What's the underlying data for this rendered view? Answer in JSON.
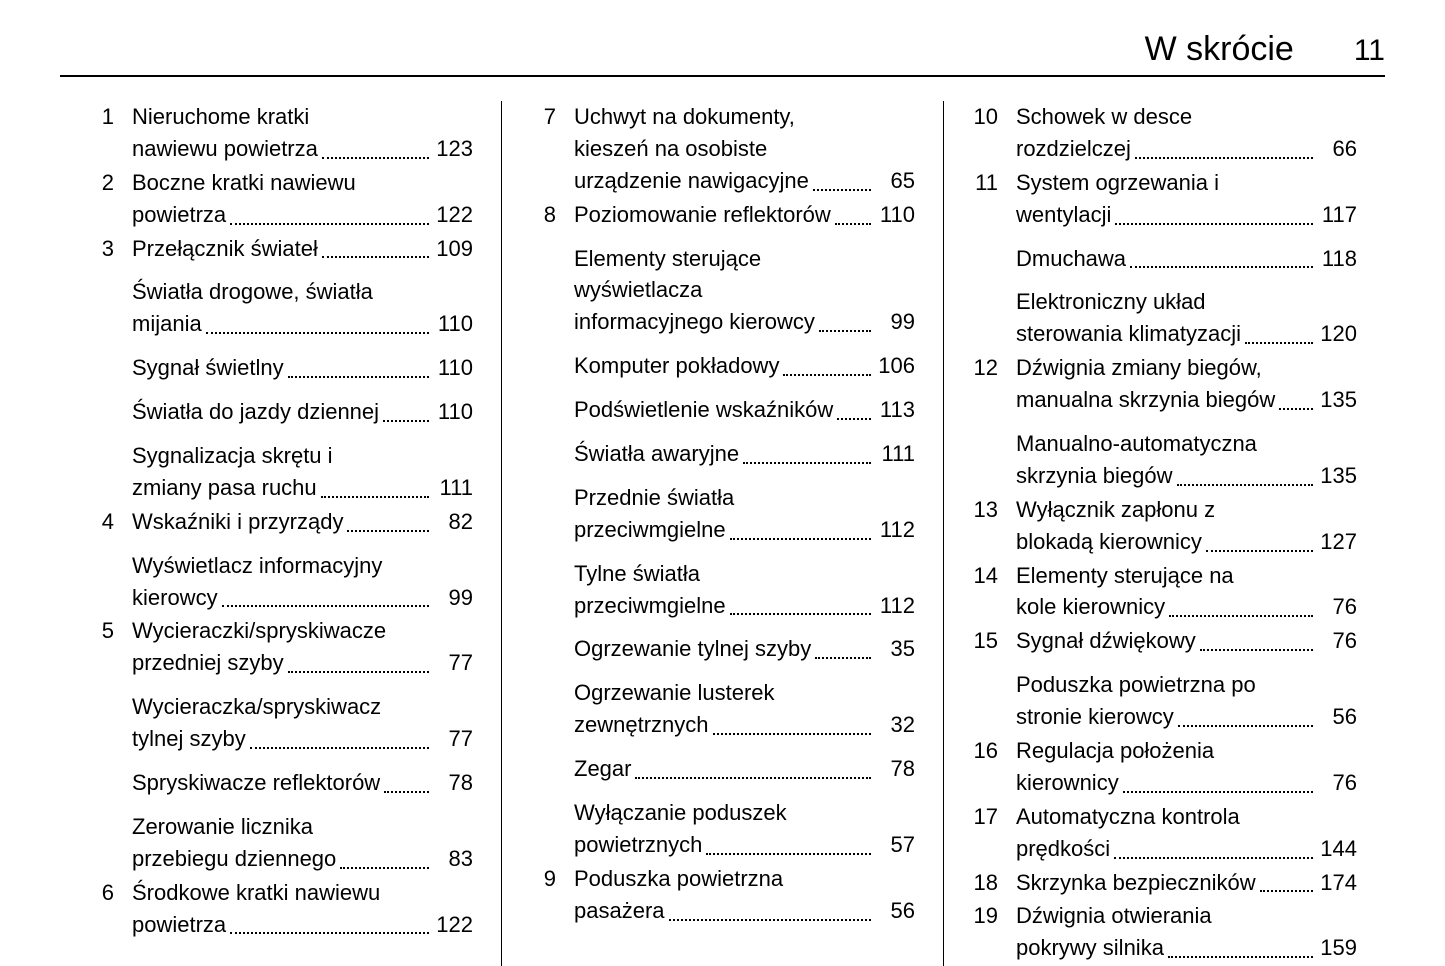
{
  "header": {
    "title": "W skrócie",
    "page": "11"
  },
  "columns": [
    {
      "entries": [
        {
          "num": "1",
          "lines": [
            "Nieruchome kratki"
          ],
          "last": "nawiewu powietrza",
          "page": "123"
        },
        {
          "num": "2",
          "lines": [
            "Boczne kratki nawiewu"
          ],
          "last": "powietrza",
          "page": "122"
        },
        {
          "num": "3",
          "lines": [],
          "last": "Przełącznik świateł",
          "page": "109"
        },
        {
          "num": "",
          "spacer": true,
          "lines": [
            "Światła drogowe, światła"
          ],
          "last": "mijania",
          "page": "110"
        },
        {
          "num": "",
          "spacer": true,
          "lines": [],
          "last": "Sygnał świetlny",
          "page": "110"
        },
        {
          "num": "",
          "spacer": true,
          "lines": [],
          "last": "Światła do jazdy dziennej",
          "page": "110"
        },
        {
          "num": "",
          "spacer": true,
          "lines": [
            "Sygnalizacja skrętu i"
          ],
          "last": "zmiany pasa ruchu",
          "page": "111"
        },
        {
          "num": "4",
          "lines": [],
          "last": "Wskaźniki i przyrządy",
          "page": "82"
        },
        {
          "num": "",
          "spacer": true,
          "lines": [
            "Wyświetlacz informacyjny"
          ],
          "last": "kierowcy",
          "page": "99"
        },
        {
          "num": "5",
          "lines": [
            "Wycieraczki/spryskiwacze"
          ],
          "last": "przedniej szyby",
          "page": "77"
        },
        {
          "num": "",
          "spacer": true,
          "lines": [
            "Wycieraczka/spryskiwacz"
          ],
          "last": "tylnej szyby",
          "page": "77"
        },
        {
          "num": "",
          "spacer": true,
          "lines": [],
          "last": "Spryskiwacze reflektorów",
          "page": "78"
        },
        {
          "num": "",
          "spacer": true,
          "lines": [
            "Zerowanie licznika"
          ],
          "last": "przebiegu dziennego",
          "page": "83"
        },
        {
          "num": "6",
          "lines": [
            "Środkowe kratki nawiewu"
          ],
          "last": "powietrza",
          "page": "122"
        }
      ]
    },
    {
      "entries": [
        {
          "num": "7",
          "lines": [
            "Uchwyt na dokumenty,",
            "kieszeń na osobiste"
          ],
          "last": "urządzenie nawigacyjne",
          "page": "65"
        },
        {
          "num": "8",
          "lines": [],
          "last": "Poziomowanie reflektorów",
          "page": "110"
        },
        {
          "num": "",
          "spacer": true,
          "lines": [
            "Elementy sterujące",
            "wyświetlacza"
          ],
          "last": "informacyjnego kierowcy",
          "page": "99"
        },
        {
          "num": "",
          "spacer": true,
          "lines": [],
          "last": "Komputer pokładowy",
          "page": "106"
        },
        {
          "num": "",
          "spacer": true,
          "lines": [],
          "last": "Podświetlenie wskaźników",
          "page": "113"
        },
        {
          "num": "",
          "spacer": true,
          "lines": [],
          "last": "Światła awaryjne",
          "page": "111"
        },
        {
          "num": "",
          "spacer": true,
          "lines": [
            "Przednie światła"
          ],
          "last": "przeciwmgielne",
          "page": "112"
        },
        {
          "num": "",
          "spacer": true,
          "lines": [
            "Tylne światła"
          ],
          "last": "przeciwmgielne",
          "page": "112"
        },
        {
          "num": "",
          "spacer": true,
          "lines": [],
          "last": "Ogrzewanie tylnej szyby",
          "page": "35"
        },
        {
          "num": "",
          "spacer": true,
          "lines": [
            "Ogrzewanie lusterek"
          ],
          "last": "zewnętrznych",
          "page": "32"
        },
        {
          "num": "",
          "spacer": true,
          "lines": [],
          "last": "Zegar",
          "page": "78"
        },
        {
          "num": "",
          "spacer": true,
          "lines": [
            "Wyłączanie poduszek"
          ],
          "last": "powietrznych",
          "page": "57"
        },
        {
          "num": "9",
          "lines": [
            "Poduszka powietrzna"
          ],
          "last": "pasażera",
          "page": "56"
        }
      ]
    },
    {
      "entries": [
        {
          "num": "10",
          "lines": [
            "Schowek w desce"
          ],
          "last": "rozdzielczej",
          "page": "66"
        },
        {
          "num": "11",
          "lines": [
            "System ogrzewania i"
          ],
          "last": "wentylacji",
          "page": "117"
        },
        {
          "num": "",
          "spacer": true,
          "lines": [],
          "last": "Dmuchawa",
          "page": "118"
        },
        {
          "num": "",
          "spacer": true,
          "lines": [
            "Elektroniczny układ"
          ],
          "last": "sterowania klimatyzacji",
          "page": "120"
        },
        {
          "num": "12",
          "lines": [
            "Dźwignia zmiany biegów,"
          ],
          "last": "manualna skrzynia biegów",
          "page": "135"
        },
        {
          "num": "",
          "spacer": true,
          "lines": [
            "Manualno-automatyczna"
          ],
          "last": "skrzynia biegów",
          "page": "135"
        },
        {
          "num": "13",
          "lines": [
            "Wyłącznik zapłonu z"
          ],
          "last": "blokadą kierownicy",
          "page": "127"
        },
        {
          "num": "14",
          "lines": [
            "Elementy sterujące na"
          ],
          "last": "kole kierownicy",
          "page": "76"
        },
        {
          "num": "15",
          "lines": [],
          "last": "Sygnał dźwiękowy",
          "page": "76"
        },
        {
          "num": "",
          "spacer": true,
          "lines": [
            "Poduszka powietrzna po"
          ],
          "last": "stronie kierowcy",
          "page": "56"
        },
        {
          "num": "16",
          "lines": [
            "Regulacja położenia"
          ],
          "last": "kierownicy",
          "page": "76"
        },
        {
          "num": "17",
          "lines": [
            "Automatyczna kontrola"
          ],
          "last": "prędkości",
          "page": "144"
        },
        {
          "num": "18",
          "lines": [],
          "last": "Skrzynka bezpieczników",
          "page": "174"
        },
        {
          "num": "19",
          "lines": [
            "Dźwignia otwierania"
          ],
          "last": "pokrywy silnika",
          "page": "159"
        }
      ]
    }
  ]
}
